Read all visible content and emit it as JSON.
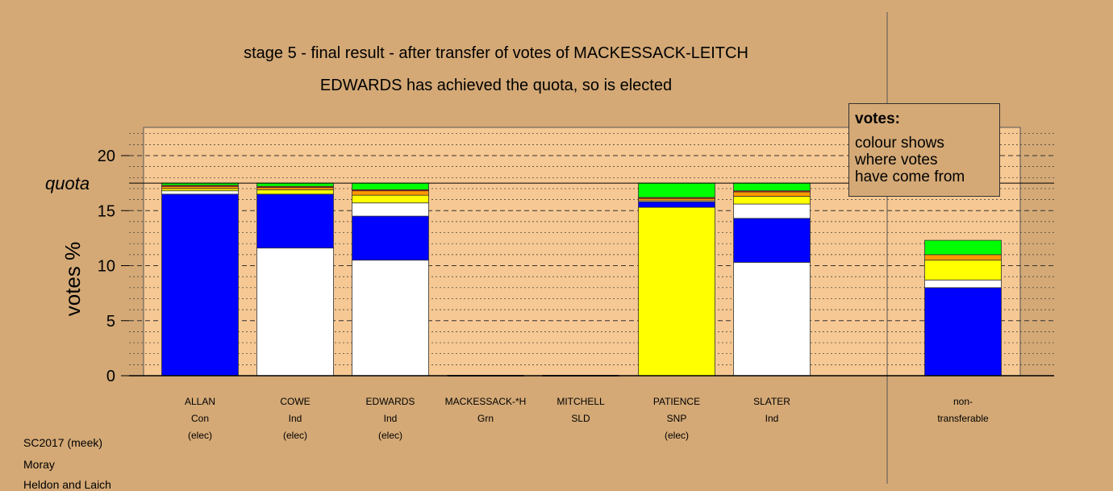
{
  "title": "stage 5 - final result - after transfer of votes of MACKESSACK-LEITCH",
  "subtitle": "EDWARDS has achieved the quota, so is elected",
  "legend": {
    "heading": "votes:",
    "lines": [
      "colour shows",
      "where votes",
      "have come from"
    ]
  },
  "footer": [
    "SC2017 (meek)",
    "Moray",
    "Heldon and Laich"
  ],
  "colors": {
    "background": "#d4a976",
    "plot_bg": "#f6c893",
    "Con": "#0000ff",
    "Ind": "#ffffff",
    "SNP": "#ffff00",
    "Orange": "#ff9900",
    "Red": "#ff0000",
    "Grn": "#00ff00"
  },
  "chart_data": {
    "type": "bar",
    "stacked": true,
    "ylabel": "votes %",
    "ylim": [
      0,
      22.5
    ],
    "yticks": [
      0,
      5,
      10,
      15,
      20
    ],
    "quota": 17.5,
    "quota_label": "quota",
    "categories": [
      {
        "name": "ALLAN",
        "party": "Con",
        "status": "(elec)"
      },
      {
        "name": "COWE",
        "party": "Ind",
        "status": "(elec)"
      },
      {
        "name": "EDWARDS",
        "party": "Ind",
        "status": "(elec)"
      },
      {
        "name": "MACKESSACK-*H",
        "party": "Grn",
        "status": ""
      },
      {
        "name": "MITCHELL",
        "party": "SLD",
        "status": ""
      },
      {
        "name": "PATIENCE",
        "party": "SNP",
        "status": "(elec)"
      },
      {
        "name": "SLATER",
        "party": "Ind",
        "status": ""
      },
      {
        "name": "non-",
        "party": "transferable",
        "status": ""
      }
    ],
    "segments": [
      [
        {
          "color": "#0000ff",
          "value": 16.5
        },
        {
          "color": "#ffffff",
          "value": 0.3
        },
        {
          "color": "#ffff00",
          "value": 0.2
        },
        {
          "color": "#ff9900",
          "value": 0.2
        },
        {
          "color": "#ff0000",
          "value": 0.1
        },
        {
          "color": "#00ff00",
          "value": 0.2
        }
      ],
      [
        {
          "color": "#ffffff",
          "value": 11.6
        },
        {
          "color": "#0000ff",
          "value": 4.9
        },
        {
          "color": "#ffff00",
          "value": 0.4
        },
        {
          "color": "#ff9900",
          "value": 0.2
        },
        {
          "color": "#ff0000",
          "value": 0.1
        },
        {
          "color": "#00ff00",
          "value": 0.3
        }
      ],
      [
        {
          "color": "#ffffff",
          "value": 10.5
        },
        {
          "color": "#0000ff",
          "value": 4.0
        },
        {
          "color": "#ffffff",
          "value": 1.2
        },
        {
          "color": "#ffff00",
          "value": 0.7
        },
        {
          "color": "#ff9900",
          "value": 0.4
        },
        {
          "color": "#ff0000",
          "value": 0.1
        },
        {
          "color": "#00ff00",
          "value": 0.6
        }
      ],
      [],
      [],
      [
        {
          "color": "#ffff00",
          "value": 15.3
        },
        {
          "color": "#0000ff",
          "value": 0.5
        },
        {
          "color": "#ffffff",
          "value": 0.1
        },
        {
          "color": "#ff9900",
          "value": 0.2
        },
        {
          "color": "#ff0000",
          "value": 0.1
        },
        {
          "color": "#00ff00",
          "value": 1.3
        }
      ],
      [
        {
          "color": "#ffffff",
          "value": 10.3
        },
        {
          "color": "#0000ff",
          "value": 4.0
        },
        {
          "color": "#ffffff",
          "value": 1.3
        },
        {
          "color": "#ffff00",
          "value": 0.7
        },
        {
          "color": "#ff9900",
          "value": 0.4
        },
        {
          "color": "#ff0000",
          "value": 0.1
        },
        {
          "color": "#00ff00",
          "value": 0.7
        }
      ],
      [
        {
          "color": "#0000ff",
          "value": 8.0
        },
        {
          "color": "#ffffff",
          "value": 0.7
        },
        {
          "color": "#ffff00",
          "value": 1.8
        },
        {
          "color": "#ff9900",
          "value": 0.5
        },
        {
          "color": "#00ff00",
          "value": 1.3
        }
      ]
    ]
  }
}
